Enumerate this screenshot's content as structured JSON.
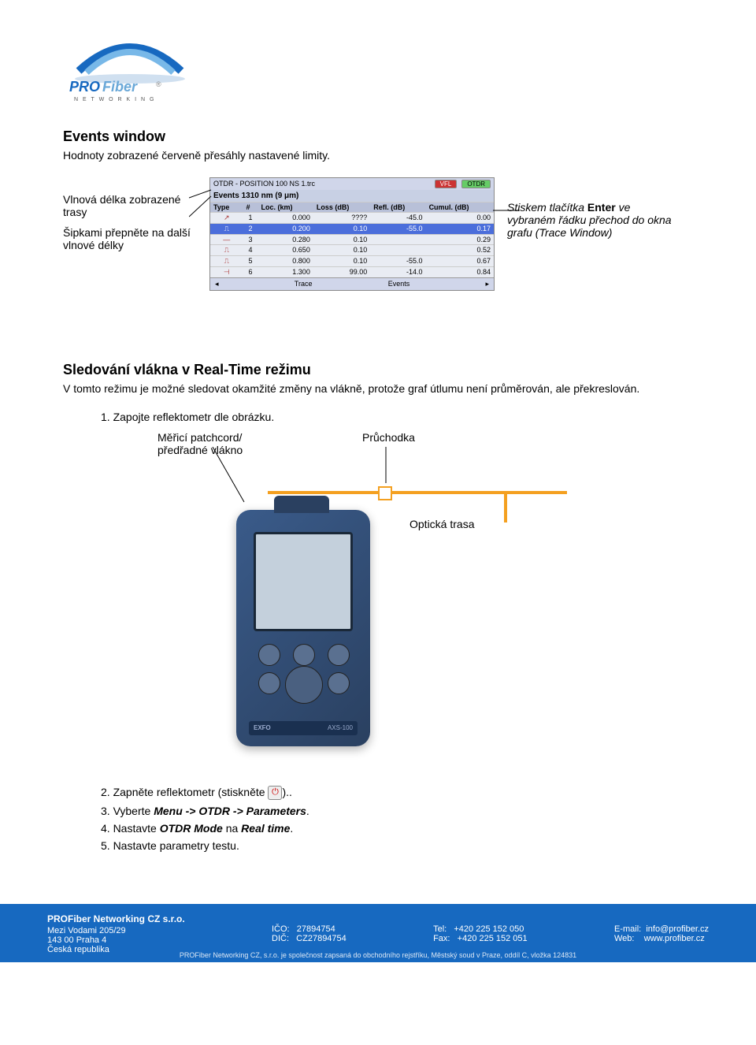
{
  "logo": {
    "brand": "PROFiber",
    "tagline": "N E T W O R K I N G"
  },
  "section1": {
    "heading": "Events window",
    "body": "Hodnoty zobrazené červeně přesáhly nastavené limity."
  },
  "annotations": {
    "left1": "Vlnová délka zobrazené trasy",
    "left2": "Šipkami přepněte na další vlnové délky",
    "right_line1": "Stiskem tlačítka ",
    "right_bold": "Enter",
    "right_line2": " ve vybraném řádku přechod do okna grafu (Trace Window)"
  },
  "events_table": {
    "topbar_text": "OTDR - POSITION 100 NS 1.trc",
    "vfl": "VFL",
    "otdr": "OTDR",
    "title": "Events 1310 nm (9 μm)",
    "headers": [
      "Type",
      "#",
      "Loc. (km)",
      "Loss (dB)",
      "Refl. (dB)",
      "Cumul. (dB)"
    ],
    "rows": [
      {
        "icon": "↗",
        "n": "1",
        "loc": "0.000",
        "loss": "????",
        "refl": "-45.0",
        "cum": "0.00",
        "hl": false
      },
      {
        "icon": "⎍",
        "n": "2",
        "loc": "0.200",
        "loss": "0.10",
        "refl": "-55.0",
        "cum": "0.17",
        "hl": true
      },
      {
        "icon": "—",
        "n": "3",
        "loc": "0.280",
        "loss": "0.10",
        "refl": "",
        "cum": "0.29",
        "hl": false
      },
      {
        "icon": "⎍",
        "n": "4",
        "loc": "0.650",
        "loss": "0.10",
        "refl": "",
        "cum": "0.52",
        "hl": false
      },
      {
        "icon": "⎍",
        "n": "5",
        "loc": "0.800",
        "loss": "0.10",
        "refl": "-55.0",
        "cum": "0.67",
        "hl": false
      },
      {
        "icon": "⊣",
        "n": "6",
        "loc": "1.300",
        "loss": "99.00",
        "refl": "-14.0",
        "cum": "0.84",
        "hl": false
      }
    ],
    "footer_left": "◂",
    "footer_trace": "Trace",
    "footer_events": "Events",
    "footer_right": "▸"
  },
  "section2": {
    "heading": "Sledování vlákna v Real-Time režimu",
    "body": "V tomto režimu je možné sledovat okamžité změny na vlákně, protože graf útlumu není průměrován, ale překreslován.",
    "step1": "1. Zapojte reflektometr dle obrázku."
  },
  "diagram": {
    "label_patch": "Měřicí patchcord/ předřadné vlákno",
    "label_pruch": "Průchodka",
    "label_trasa": "Optická trasa",
    "fiber_color": "#f4a020",
    "device_label": "AXS-100"
  },
  "steps": {
    "s2a": "2. Zapněte reflektometr (stiskněte ",
    "s2b": ")..",
    "s3": "3. Vyberte ",
    "s3b": "Menu -> OTDR -> Parameters",
    "s3c": ".",
    "s4": "4. Nastavte ",
    "s4b": "OTDR Mode",
    "s4c": " na ",
    "s4d": "Real time",
    "s4e": ".",
    "s5": "5. Nastavte parametry testu."
  },
  "footer": {
    "company": "PROFiber Networking CZ s.r.o.",
    "addr1": "Mezi Vodami 205/29",
    "addr2": "143 00 Praha 4",
    "addr3": "Česká republika",
    "ico_lbl": "IČO:",
    "ico": "27894754",
    "dic_lbl": "DIČ:",
    "dic": "CZ27894754",
    "tel_lbl": "Tel:",
    "tel": "+420 225 152 050",
    "fax_lbl": "Fax:",
    "fax": "+420 225 152 051",
    "email_lbl": "E-mail:",
    "email": "info@profiber.cz",
    "web_lbl": "Web:",
    "web": "www.profiber.cz",
    "sub": "PROFiber Networking CZ, s.r.o. je společnost zapsaná do obchodního rejstříku, Městský soud v Praze, oddíl C, vložka 124831"
  }
}
